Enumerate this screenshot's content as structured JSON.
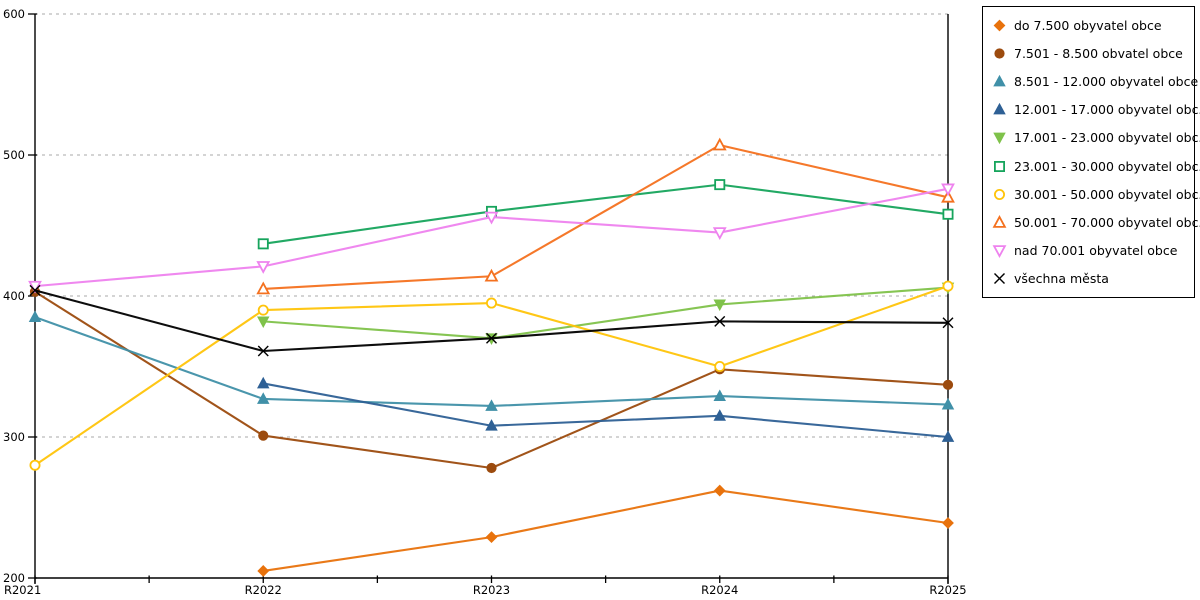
{
  "chart_data": {
    "type": "line",
    "title": "",
    "xlabel": "",
    "ylabel": "",
    "categories": [
      "R2021",
      "R2022",
      "R2023",
      "R2024",
      "R2025"
    ],
    "ylim": [
      200,
      600
    ],
    "y_ticks": [
      200,
      300,
      400,
      500,
      600
    ],
    "grid": "horizontal-dashed",
    "legend_position": "right-outside-boxed",
    "series": [
      {
        "name": "do 7.500 obyvatel obce",
        "color": "#E8720C",
        "marker": "diamond",
        "filled": true,
        "values": [
          null,
          205,
          229,
          262,
          239
        ]
      },
      {
        "name": "7.501 - 8.500 obvatel obce",
        "color": "#9C4B0E",
        "marker": "circle",
        "filled": true,
        "values": [
          403,
          301,
          278,
          348,
          337
        ]
      },
      {
        "name": "8.501 - 12.000 obyvatel obce",
        "color": "#4090A8",
        "marker": "triangle-up",
        "filled": true,
        "values": [
          385,
          327,
          322,
          329,
          323
        ]
      },
      {
        "name": "12.001 - 17.000 obyvatel obc...",
        "color": "#2E6095",
        "marker": "triangle-up",
        "filled": true,
        "values": [
          null,
          338,
          308,
          315,
          300
        ]
      },
      {
        "name": "17.001 - 23.000 obyvatel obc...",
        "color": "#7FC24A",
        "marker": "triangle-down",
        "filled": true,
        "values": [
          null,
          382,
          370,
          394,
          406
        ]
      },
      {
        "name": "23.001 - 30.000 obyvatel obc...",
        "color": "#16A45C",
        "marker": "square",
        "filled": false,
        "values": [
          null,
          437,
          460,
          479,
          458
        ]
      },
      {
        "name": "30.001 - 50.000 obyvatel obc...",
        "color": "#FFC40A",
        "marker": "circle",
        "filled": false,
        "values": [
          280,
          390,
          395,
          350,
          407
        ]
      },
      {
        "name": "50.001 - 70.000 obyvatel obc...",
        "color": "#F4711F",
        "marker": "triangle-up",
        "filled": false,
        "values": [
          null,
          405,
          414,
          507,
          470
        ]
      },
      {
        "name": "nad 70.001 obyvatel obce",
        "color": "#EE82EE",
        "marker": "triangle-down",
        "filled": false,
        "values": [
          407,
          421,
          456,
          445,
          476
        ]
      },
      {
        "name": "všechna města",
        "color": "#000000",
        "marker": "x",
        "filled": true,
        "values": [
          404,
          361,
          370,
          382,
          381
        ]
      }
    ]
  },
  "colors": {
    "axis": "#000000",
    "gridline": "#AAAAAA",
    "background": "#FFFFFF",
    "legend_border": "#000000"
  }
}
